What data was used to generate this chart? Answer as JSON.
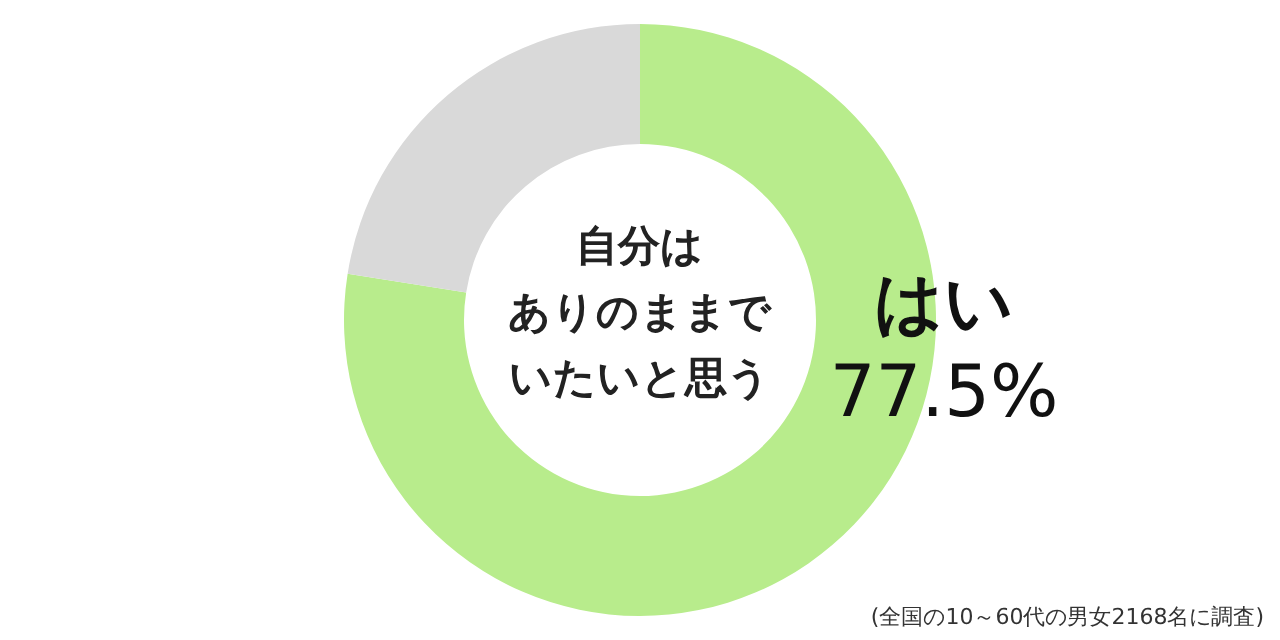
{
  "chart_data": {
    "type": "donut",
    "title": "自分はありのままでいたいと思う",
    "categories": [
      "はい",
      null
    ],
    "values": [
      77.5,
      22.5
    ],
    "colors": [
      "#b8ec8c",
      "#d9d9d9"
    ],
    "value_labels": [
      "77.5%",
      null
    ],
    "annotations": [
      "(全国の10～60代の男女2168名に調査)"
    ]
  }
}
